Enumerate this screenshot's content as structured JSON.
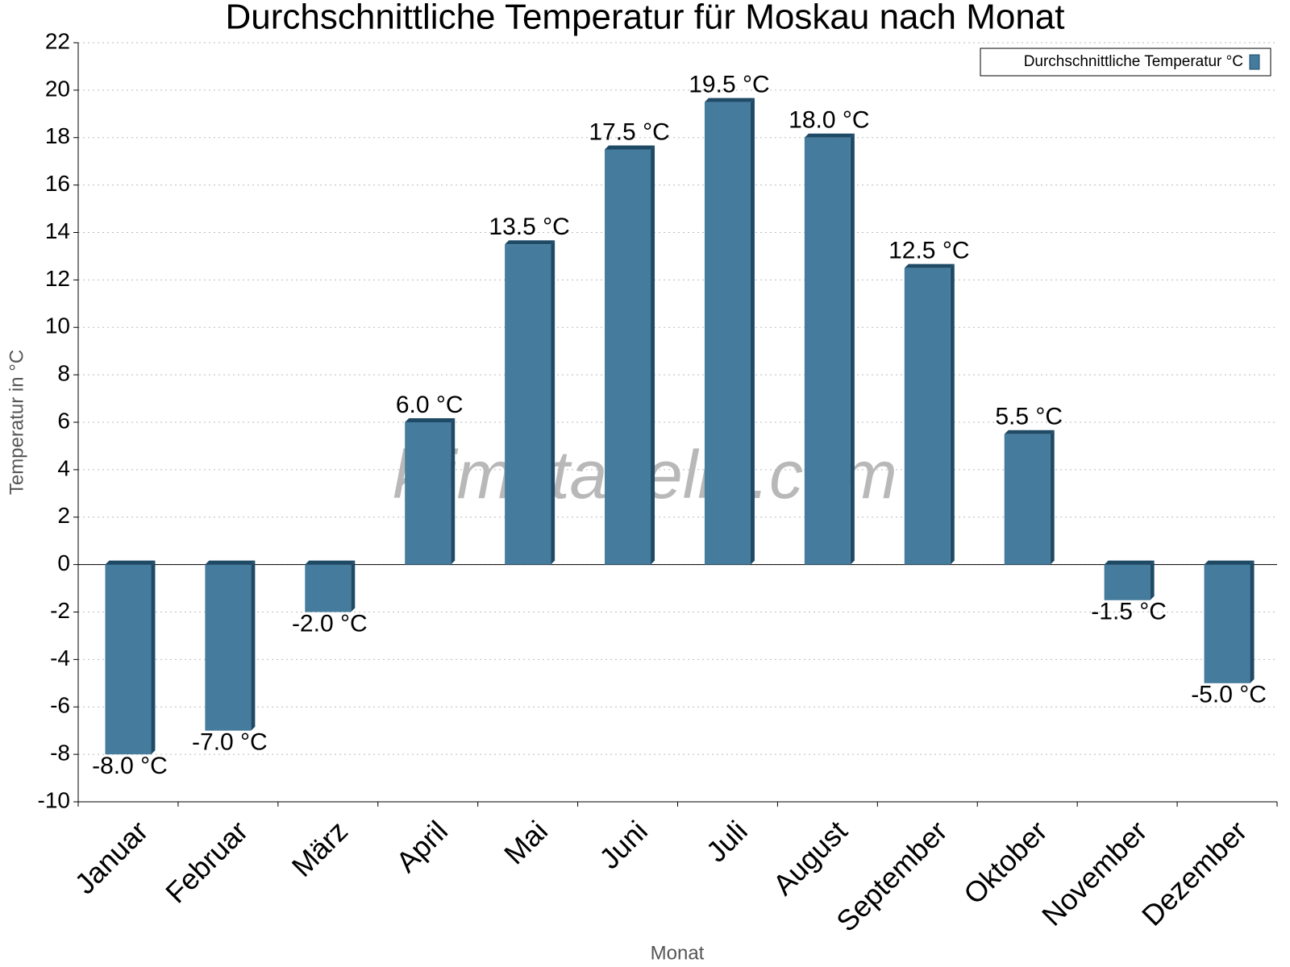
{
  "chart_data": {
    "type": "bar",
    "title": "Durchschnittliche Temperatur für Moskau nach Monat",
    "x_label": "Monat",
    "y_label": "Temperatur in °C",
    "watermark": "klimatabelle.com",
    "legend_position": "upper right",
    "grid": true,
    "categories": [
      "Januar",
      "Februar",
      "März",
      "April",
      "Mai",
      "Juni",
      "Juli",
      "August",
      "September",
      "Oktober",
      "November",
      "Dezember"
    ],
    "series": [
      {
        "name": "Durchschnittliche Temperatur °C",
        "color": "#457b9d",
        "values": [
          -8,
          -7,
          -2,
          6,
          13.5,
          17.5,
          19.5,
          18,
          12.5,
          5.5,
          -1.5,
          -5
        ],
        "value_labels": [
          "-8.0 °C",
          "-7.0 °C",
          "-2.0 °C",
          "6.0 °C",
          "13.5 °C",
          "17.5 °C",
          "19.5 °C",
          "18.0 °C",
          "12.5 °C",
          "5.5 °C",
          "-1.5 °C",
          "-5.0 °C"
        ]
      }
    ],
    "ylim": [
      -10,
      22
    ],
    "yticks": [
      -10,
      -8,
      -6,
      -4,
      -2,
      0,
      2,
      4,
      6,
      8,
      10,
      12,
      14,
      16,
      18,
      20,
      22
    ]
  }
}
